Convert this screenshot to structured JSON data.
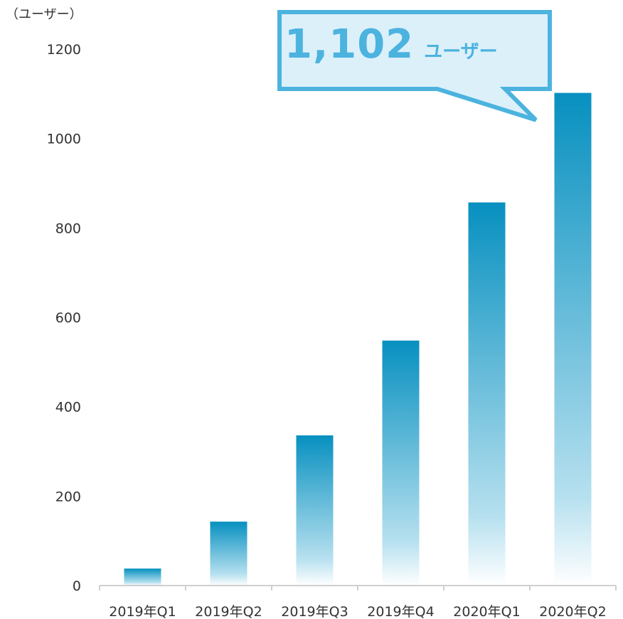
{
  "chart_data": {
    "type": "bar",
    "categories": [
      "2019年Q1",
      "2019年Q2",
      "2019年Q3",
      "2019年Q4",
      "2020年Q1",
      "2020年Q2"
    ],
    "values": [
      38,
      143,
      336,
      548,
      857,
      1102
    ],
    "title": "",
    "xlabel": "",
    "ylabel": "（ユーザー）",
    "ylim": [
      0,
      1200
    ],
    "yticks": [
      0,
      200,
      400,
      600,
      800,
      1000,
      1200
    ],
    "grid": false,
    "bar_color_top": "#0790c0",
    "bar_color_bottom": "#ffffff",
    "callout": {
      "value": "1,102",
      "unit": "ユーザー",
      "color": "#4cb3df",
      "fill": "#dcf0fa",
      "target_category": "2020年Q2"
    }
  }
}
